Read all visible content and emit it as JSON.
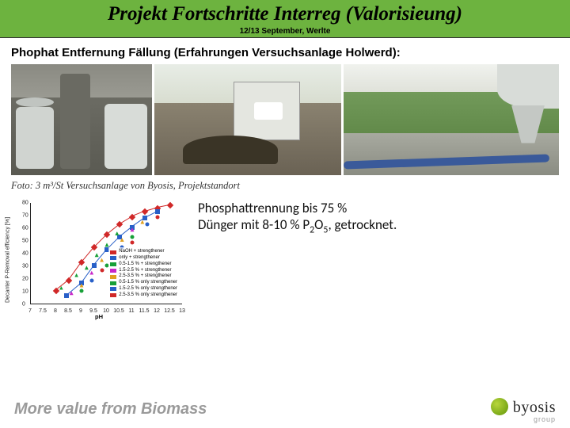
{
  "header": {
    "title": "Projekt Fortschritte Interreg (Valorisieung)",
    "subtitle": "12/13 September, Werlte",
    "band_color": "#6db33f"
  },
  "section_heading": "Phophat Entfernung Fällung (Erfahrungen Versuchsanlage Holwerd):",
  "photo_caption": "Foto: 3 m³/St Versuchsanlage von Byosis, Projektstandort",
  "body": {
    "line1": "Phosphattrennung bis 75 %",
    "line2_pre": "Dünger mit 8-10 % P",
    "line2_sub1": "2",
    "line2_mid": "O",
    "line2_sub2": "5",
    "line2_post": ", getrocknet."
  },
  "chart": {
    "ylabel": "Decanter P-Removal efficiency [%]",
    "xlabel": "pH",
    "ylim": [
      0,
      80
    ],
    "ytick_step": 10,
    "xlim": [
      7,
      13
    ],
    "xtick_step": 0.5,
    "series": [
      {
        "label": "NaOH + strengthener",
        "color": "#d02828",
        "marker": "diamond",
        "points": [
          [
            8.0,
            10
          ],
          [
            8.5,
            18
          ],
          [
            9.0,
            32
          ],
          [
            9.5,
            44
          ],
          [
            10.0,
            54
          ],
          [
            10.5,
            62
          ],
          [
            11.0,
            68
          ],
          [
            11.5,
            72
          ],
          [
            12.0,
            75
          ],
          [
            12.5,
            77
          ]
        ]
      },
      {
        "label": "only + strengthener",
        "color": "#2860c8",
        "marker": "square",
        "points": [
          [
            8.4,
            6
          ],
          [
            9.0,
            16
          ],
          [
            9.5,
            30
          ],
          [
            10.0,
            42
          ],
          [
            10.5,
            52
          ],
          [
            11.0,
            60
          ],
          [
            11.5,
            67
          ],
          [
            12.0,
            72
          ]
        ]
      }
    ],
    "scatter": [
      {
        "label": "0.5-1.5 % + strengthener",
        "color": "#18a038",
        "marker": "triangle",
        "points": [
          [
            8.2,
            12
          ],
          [
            8.8,
            22
          ],
          [
            9.2,
            28
          ],
          [
            9.6,
            38
          ],
          [
            10.0,
            46
          ],
          [
            10.4,
            55
          ]
        ]
      },
      {
        "label": "1.5-2.5 % + strengthener",
        "color": "#c828c8",
        "marker": "triangle",
        "points": [
          [
            8.6,
            8
          ],
          [
            9.4,
            24
          ],
          [
            10.2,
            40
          ],
          [
            11.0,
            58
          ]
        ]
      },
      {
        "label": "2.5-3.5 % + strengthener",
        "color": "#e0a020",
        "marker": "triangle",
        "points": [
          [
            9.0,
            14
          ],
          [
            9.8,
            34
          ],
          [
            10.6,
            50
          ],
          [
            11.4,
            64
          ]
        ]
      },
      {
        "label": "0.5-1.5 % only strengthener",
        "color": "#18a038",
        "marker": "circle",
        "points": [
          [
            9.0,
            10
          ],
          [
            10.0,
            30
          ],
          [
            11.0,
            52
          ]
        ]
      },
      {
        "label": "1.5-2.5 % only strengthener",
        "color": "#2860c8",
        "marker": "circle",
        "points": [
          [
            9.4,
            18
          ],
          [
            10.6,
            44
          ],
          [
            11.6,
            62
          ]
        ]
      },
      {
        "label": "2.5-3.5 % only strengthener",
        "color": "#d02828",
        "marker": "circle",
        "points": [
          [
            9.8,
            26
          ],
          [
            11.0,
            48
          ],
          [
            12.0,
            68
          ]
        ]
      }
    ],
    "legend_pos": "bottom-right"
  },
  "footer": {
    "tagline": "More value from Biomass",
    "logo_text": "byosis",
    "logo_sub": "group",
    "logo_color": "#8ab81c"
  }
}
